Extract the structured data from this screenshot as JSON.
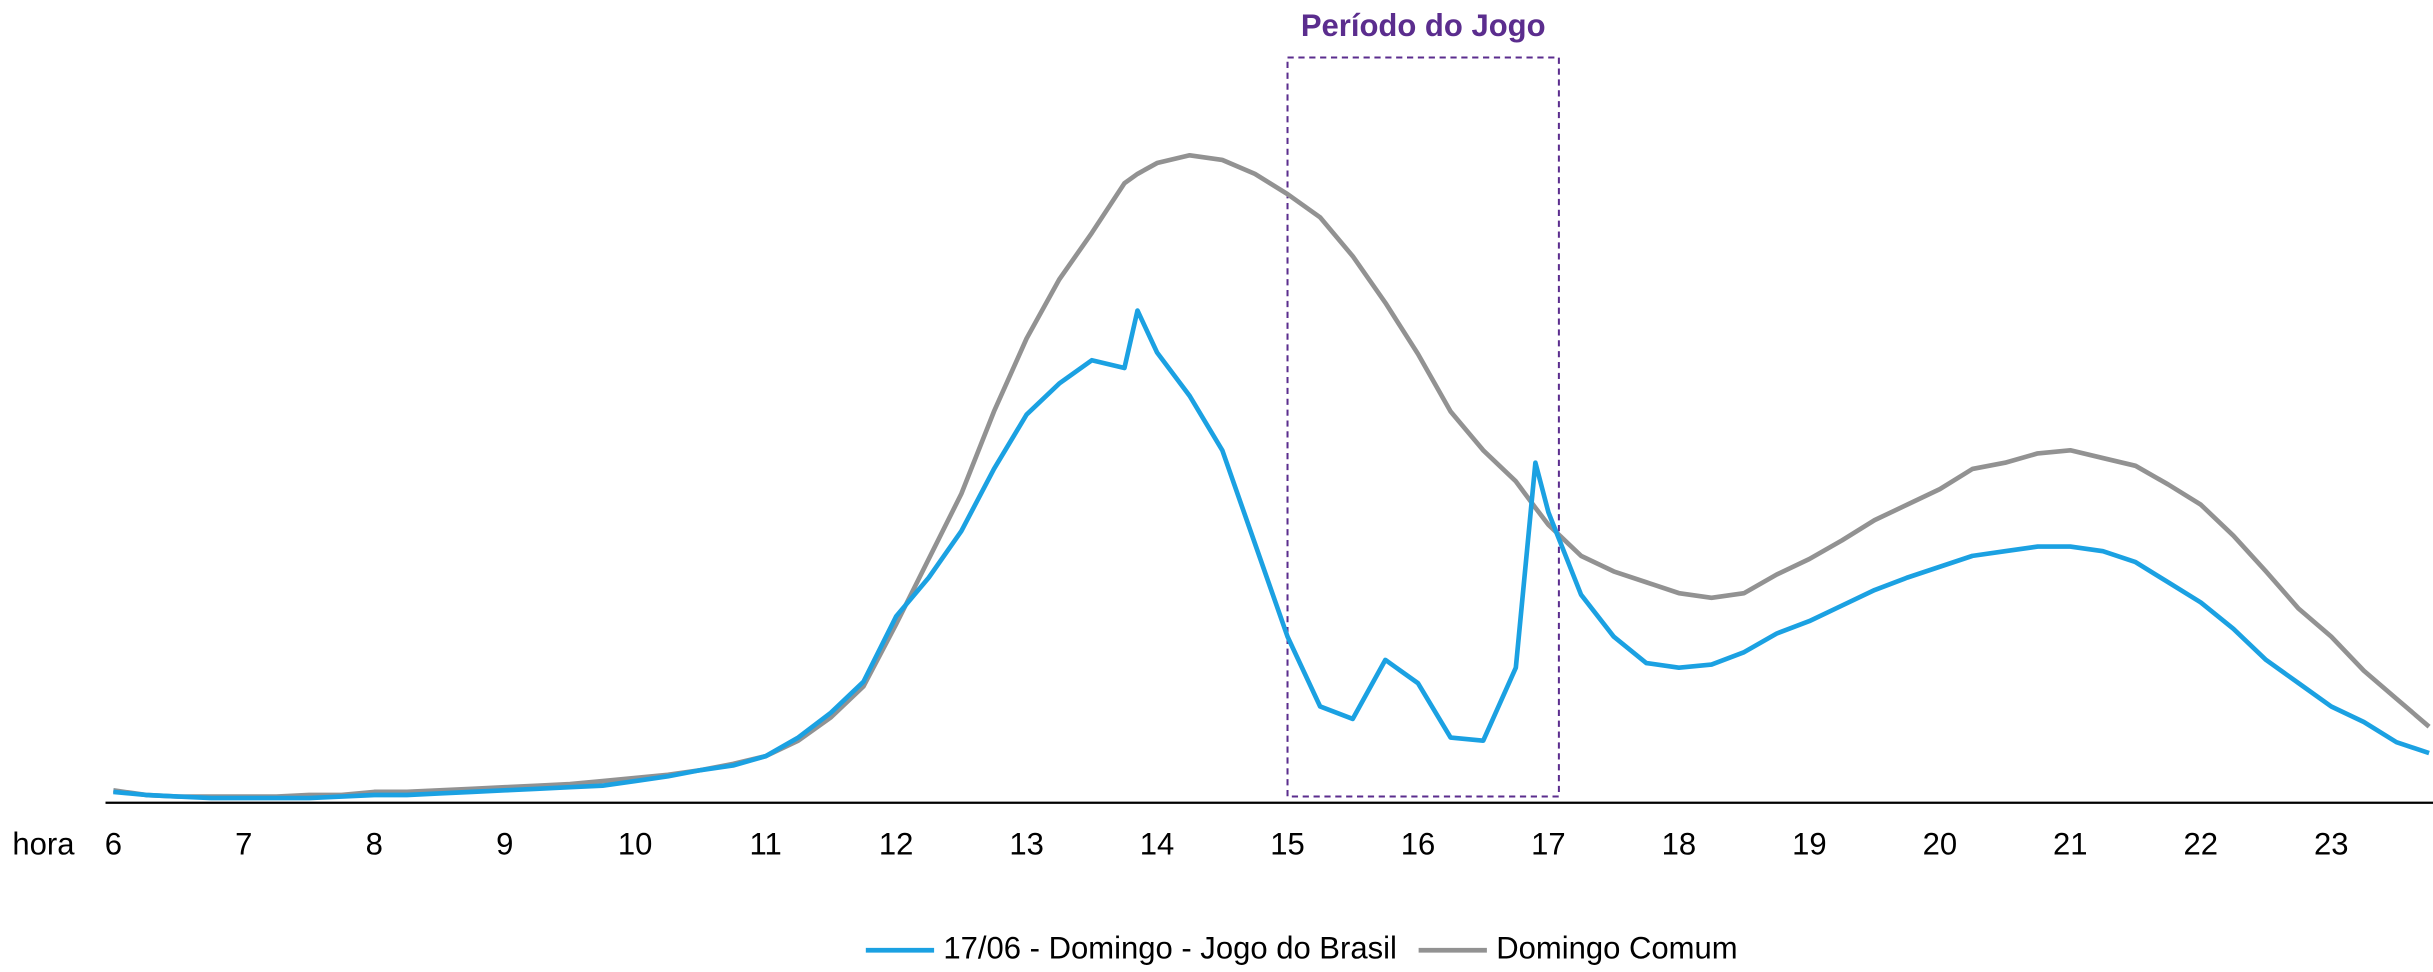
{
  "chart_data": {
    "type": "line",
    "x_label": "hora",
    "x": [
      6,
      6.25,
      6.5,
      6.75,
      7,
      7.25,
      7.5,
      7.75,
      8,
      8.25,
      8.5,
      8.75,
      9,
      9.25,
      9.5,
      9.75,
      10,
      10.25,
      10.5,
      10.75,
      11,
      11.25,
      11.5,
      11.75,
      12,
      12.25,
      12.5,
      12.75,
      13,
      13.25,
      13.5,
      13.75,
      13.85,
      14,
      14.25,
      14.5,
      14.75,
      15,
      15.25,
      15.5,
      15.75,
      16,
      16.25,
      16.5,
      16.75,
      16.9,
      17,
      17.25,
      17.5,
      17.75,
      18,
      18.25,
      18.5,
      18.75,
      19,
      19.25,
      19.5,
      19.75,
      20,
      20.25,
      20.5,
      20.75,
      21,
      21.25,
      21.5,
      21.75,
      22,
      22.25,
      22.5,
      22.75,
      23,
      23.25,
      23.5,
      23.75
    ],
    "series": [
      {
        "name": "17/06 - Domingo - Jogo do Brasil",
        "color": "#1ba1e2",
        "values": [
          7,
          5,
          4,
          3,
          3,
          3,
          3,
          4,
          5,
          5,
          6,
          7,
          8,
          9,
          10,
          11,
          14,
          17,
          21,
          24,
          30,
          42,
          58,
          78,
          120,
          145,
          175,
          215,
          250,
          270,
          285,
          280,
          317,
          290,
          262,
          227,
          167,
          107,
          62,
          54,
          92,
          77,
          42,
          40,
          87,
          219,
          187,
          134,
          107,
          90,
          87,
          89,
          97,
          109,
          117,
          127,
          137,
          145,
          152,
          159,
          162,
          165,
          165,
          162,
          155,
          142,
          129,
          112,
          92,
          77,
          62,
          52,
          39,
          32
        ]
      },
      {
        "name": "Domingo Comum",
        "color": "#929292",
        "values": [
          8,
          5,
          4,
          4,
          4,
          4,
          5,
          5,
          7,
          7,
          8,
          9,
          10,
          11,
          12,
          14,
          16,
          18,
          21,
          25,
          30,
          40,
          55,
          75,
          115,
          157,
          199,
          252,
          299,
          337,
          367,
          399,
          405,
          412,
          417,
          414,
          405,
          392,
          377,
          352,
          322,
          289,
          252,
          227,
          207,
          190,
          179,
          159,
          149,
          142,
          135,
          132,
          135,
          147,
          157,
          169,
          182,
          192,
          202,
          215,
          219,
          225,
          227,
          222,
          217,
          205,
          192,
          172,
          149,
          125,
          107,
          85,
          67,
          49
        ]
      }
    ],
    "xlim": [
      5.94,
      23.78
    ],
    "xticks": [
      6,
      7,
      8,
      9,
      10,
      11,
      12,
      13,
      14,
      15,
      16,
      17,
      18,
      19,
      20,
      21,
      22,
      23
    ],
    "ylim": [
      0,
      440
    ],
    "highlight": {
      "label": "Período do Jogo",
      "x": [
        15,
        17.08
      ],
      "color": "#5b2d8e"
    },
    "legend": "bottom"
  }
}
